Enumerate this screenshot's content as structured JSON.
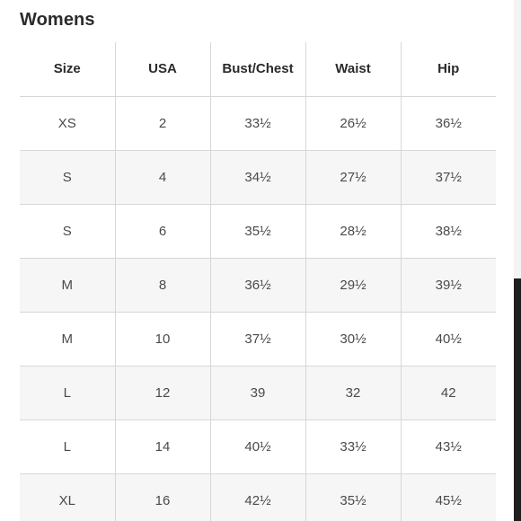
{
  "title": "Womens",
  "table": {
    "headers": [
      "Size",
      "USA",
      "Bust/Chest",
      "Waist",
      "Hip"
    ],
    "rows": [
      [
        "XS",
        "2",
        "33½",
        "26½",
        "36½"
      ],
      [
        "S",
        "4",
        "34½",
        "27½",
        "37½"
      ],
      [
        "S",
        "6",
        "35½",
        "28½",
        "38½"
      ],
      [
        "M",
        "8",
        "36½",
        "29½",
        "39½"
      ],
      [
        "M",
        "10",
        "37½",
        "30½",
        "40½"
      ],
      [
        "L",
        "12",
        "39",
        "32",
        "42"
      ],
      [
        "L",
        "14",
        "40½",
        "33½",
        "43½"
      ],
      [
        "XL",
        "16",
        "42½",
        "35½",
        "45½"
      ]
    ]
  }
}
